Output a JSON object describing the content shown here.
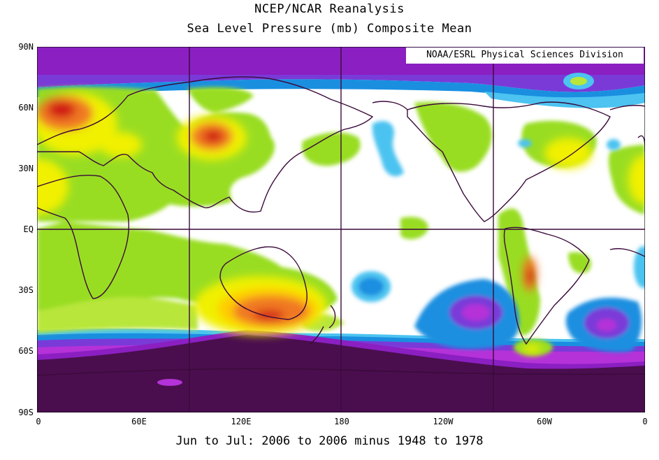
{
  "title_line1": "NCEP/NCAR Reanalysis",
  "title_line2": "Sea Level Pressure (mb) Composite Mean",
  "credit": "NOAA/ESRL Physical Sciences Division",
  "footer": "Jun to Jul: 2006 to 2006 minus 1948 to 1978",
  "y_ticks": [
    "90N",
    "60N",
    "30N",
    "EQ",
    "30S",
    "60S",
    "90S"
  ],
  "x_ticks": [
    "0",
    "60E",
    "120E",
    "180",
    "120W",
    "60W",
    "0"
  ],
  "colors": {
    "land_outline": "#3a0a3a",
    "grid": "#3a0a3a",
    "deep_purple": "#4a0e4e",
    "purple": "#8b1fc2",
    "violet": "#7a3ad8",
    "blue": "#1a8fe0",
    "light_blue": "#4cc3f0",
    "cyan": "#66ccff",
    "green": "#99dd22",
    "light_green": "#b8e63a",
    "yellow": "#f0f000",
    "gold": "#ffcc00",
    "orange": "#f07820",
    "red": "#d01818"
  }
}
